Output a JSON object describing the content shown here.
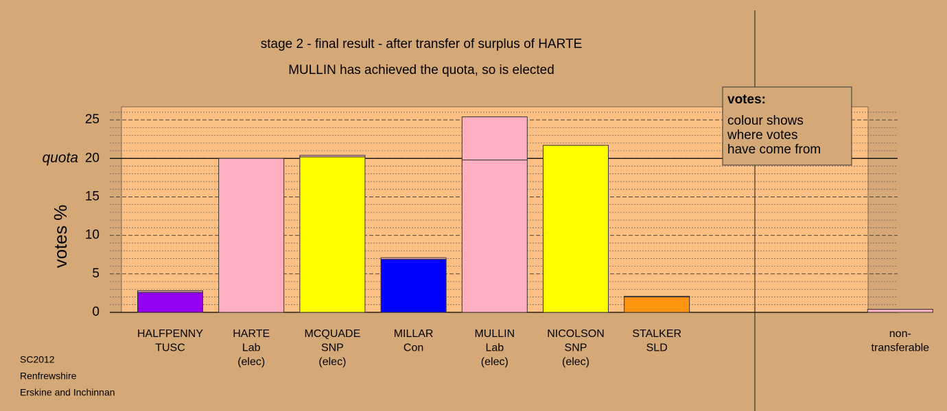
{
  "chart_data": {
    "type": "bar",
    "stacked": true,
    "title": "stage 2 - final result - after transfer of surplus of HARTE",
    "subtitle": "MULLIN has achieved the quota, so is elected",
    "y_label": "votes %",
    "categories": [
      [
        "HALFPENNY",
        "TUSC"
      ],
      [
        "HARTE",
        "Lab",
        "(elec)"
      ],
      [
        "MCQUADE",
        "SNP",
        "(elec)"
      ],
      [
        "MILLAR",
        "Con"
      ],
      [
        "MULLIN",
        "Lab",
        "(elec)"
      ],
      [
        "NICOLSON",
        "SNP",
        "(elec)"
      ],
      [
        "STALKER",
        "SLD"
      ],
      [
        "non-",
        "transferable"
      ]
    ],
    "series": [
      {
        "colors": [
          "#9400f0",
          "#ffb0c0",
          "#ffff00",
          "#0000ff",
          "#ffb0c0",
          "#ffff00",
          "#ff9410",
          "#ffb0c0"
        ],
        "values": [
          2.6,
          20.0,
          20.2,
          6.9,
          19.8,
          21.7,
          2.0,
          0.4
        ]
      },
      {
        "color": "#ffb0c0",
        "values": [
          0.2,
          null,
          0.2,
          0.2,
          5.6,
          null,
          0.1,
          null
        ]
      }
    ],
    "ylim": [
      0,
      26.7
    ],
    "yticks": [
      0,
      5,
      10,
      15,
      20,
      25
    ],
    "minor_yticks": [
      1,
      2,
      3,
      4,
      6,
      7,
      8,
      9,
      11,
      12,
      13,
      14,
      16,
      17,
      18,
      19,
      21,
      22,
      23,
      24,
      26
    ],
    "quota": {
      "label": "quota",
      "value": 20
    },
    "legend": {
      "title": "votes:",
      "lines": [
        "colour shows",
        "where votes",
        "have come from"
      ]
    },
    "footnote": [
      "SC2012",
      "Renfrewshire",
      "Erskine and Inchinnan"
    ],
    "grid": true
  }
}
